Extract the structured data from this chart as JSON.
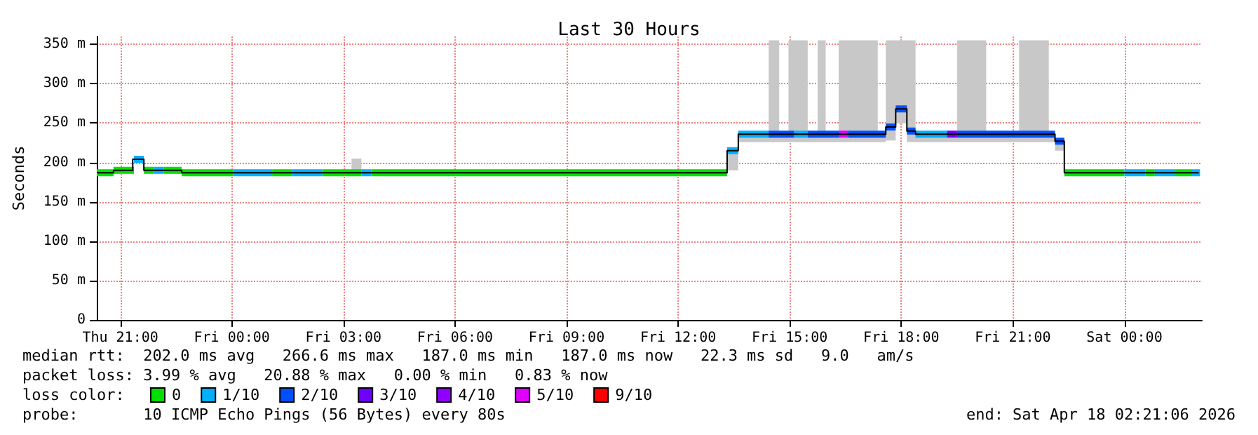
{
  "chart_data": {
    "type": "line",
    "title": "Last 30 Hours",
    "ylabel": "Seconds",
    "legend_title": "loss color:",
    "xlim": [
      "2026-04-16T20:22",
      "2026-04-18T02:05"
    ],
    "ylim": [
      0,
      360
    ],
    "xticks": [
      {
        "value": "2026-04-16T21:00",
        "label": "Thu 21:00"
      },
      {
        "value": "2026-04-17T00:00",
        "label": "Fri 00:00"
      },
      {
        "value": "2026-04-17T03:00",
        "label": "Fri 03:00"
      },
      {
        "value": "2026-04-17T06:00",
        "label": "Fri 06:00"
      },
      {
        "value": "2026-04-17T09:00",
        "label": "Fri 09:00"
      },
      {
        "value": "2026-04-17T12:00",
        "label": "Fri 12:00"
      },
      {
        "value": "2026-04-17T15:00",
        "label": "Fri 15:00"
      },
      {
        "value": "2026-04-17T18:00",
        "label": "Fri 18:00"
      },
      {
        "value": "2026-04-17T21:00",
        "label": "Fri 21:00"
      },
      {
        "value": "2026-04-18T00:00",
        "label": "Sat 00:00"
      }
    ],
    "yticks": [
      0,
      {
        "value": 50,
        "label": "50 m"
      },
      {
        "value": 100,
        "label": "100 m"
      },
      {
        "value": 150,
        "label": "150 m"
      },
      {
        "value": 200,
        "label": "200 m"
      },
      {
        "value": 250,
        "label": "250 m"
      },
      {
        "value": 300,
        "label": "300 m"
      },
      {
        "value": 350,
        "label": "350 m"
      }
    ],
    "grid": true,
    "legend": "bottom",
    "marker": "none",
    "series": [
      {
        "type": "step",
        "color": "#000000",
        "x": [
          "2026-04-16T20:22",
          "2026-04-16T20:49",
          "2026-04-16T21:20",
          "2026-04-16T21:38",
          "2026-04-16T22:39",
          "2026-04-17T03:13",
          "2026-04-17T03:29",
          "2026-04-17T13:19",
          "2026-04-17T13:37",
          "2026-04-17T14:26",
          "2026-04-17T14:43",
          "2026-04-17T14:58",
          "2026-04-17T15:29",
          "2026-04-17T15:45",
          "2026-04-17T15:58",
          "2026-04-17T16:19",
          "2026-04-17T17:22",
          "2026-04-17T17:35",
          "2026-04-17T17:51",
          "2026-04-17T18:09",
          "2026-04-17T18:23",
          "2026-04-17T19:30",
          "2026-04-17T20:17",
          "2026-04-17T21:10",
          "2026-04-17T21:58",
          "2026-04-17T22:08",
          "2026-04-17T22:23",
          "2026-04-18T02:00"
        ],
        "values": [
          187,
          190,
          204,
          190,
          187,
          187,
          187,
          215,
          236,
          236,
          236,
          236,
          236,
          236,
          236,
          236,
          236,
          245,
          268,
          240,
          236,
          236,
          236,
          236,
          236,
          227,
          187,
          187
        ],
        "lower": [
          187,
          190,
          204,
          190,
          187,
          187,
          187,
          190,
          226,
          226,
          226,
          226,
          226,
          226,
          226,
          226,
          226,
          228,
          250,
          226,
          226,
          226,
          226,
          226,
          226,
          215,
          187,
          187
        ],
        "upper": [
          187,
          190,
          204,
          190,
          187,
          205,
          187,
          215,
          240,
          355,
          240,
          355,
          240,
          355,
          240,
          355,
          240,
          355,
          355,
          355,
          240,
          355,
          240,
          355,
          240,
          230,
          187,
          187
        ]
      },
      {
        "name": "0",
        "color": "#00e000",
        "x": [
          "2026-04-16T20:22",
          "2026-04-16T20:49",
          "2026-04-16T20:49",
          "2026-04-16T21:22",
          "2026-04-16T21:38",
          "2026-04-16T21:54",
          "2026-04-16T22:10",
          "2026-04-16T22:39",
          "2026-04-16T22:39",
          "2026-04-17T00:02",
          "2026-04-17T01:05",
          "2026-04-17T01:37",
          "2026-04-17T02:26",
          "2026-04-17T03:29",
          "2026-04-17T03:45",
          "2026-04-17T13:19",
          "2026-04-17T22:23",
          "2026-04-18T00:00",
          "2026-04-18T00:34",
          "2026-04-18T00:49",
          "2026-04-18T01:21",
          "2026-04-18T01:48"
        ],
        "values": [
          187,
          187,
          190,
          190,
          190,
          190,
          190,
          190,
          187,
          187,
          187,
          187,
          187,
          187,
          187,
          187,
          187,
          187,
          187,
          187,
          187,
          187
        ]
      },
      {
        "name": "1/10",
        "color": "#00b0ff",
        "x": [
          "2026-04-16T21:22",
          "2026-04-16T21:38",
          "2026-04-16T21:54",
          "2026-04-16T22:10",
          "2026-04-17T00:02",
          "2026-04-17T01:05",
          "2026-04-17T01:37",
          "2026-04-17T02:26",
          "2026-04-17T03:29",
          "2026-04-17T03:45",
          "2026-04-17T13:19",
          "2026-04-17T13:37",
          "2026-04-17T13:37",
          "2026-04-17T14:26",
          "2026-04-17T15:07",
          "2026-04-17T15:29",
          "2026-04-17T18:23",
          "2026-04-17T19:14",
          "2026-04-18T00:00",
          "2026-04-18T00:34",
          "2026-04-18T00:49",
          "2026-04-18T01:21",
          "2026-04-18T01:48",
          "2026-04-18T02:02"
        ],
        "values": [
          204,
          204,
          190,
          190,
          187,
          187,
          187,
          187,
          187,
          187,
          215,
          215,
          236,
          236,
          236,
          236,
          236,
          236,
          187,
          187,
          187,
          187,
          187,
          187
        ]
      },
      {
        "name": "2/10",
        "color": "#0050ff",
        "x": [
          "2026-04-17T14:26",
          "2026-04-17T15:07",
          "2026-04-17T15:29",
          "2026-04-17T16:19",
          "2026-04-17T16:34",
          "2026-04-17T17:35",
          "2026-04-17T17:35",
          "2026-04-17T17:51",
          "2026-04-17T17:51",
          "2026-04-17T18:09",
          "2026-04-17T18:09",
          "2026-04-17T18:23",
          "2026-04-17T19:30",
          "2026-04-17T22:08",
          "2026-04-17T22:08",
          "2026-04-17T22:23"
        ],
        "values": [
          236,
          236,
          236,
          236,
          236,
          236,
          245,
          245,
          268,
          268,
          240,
          240,
          236,
          236,
          227,
          227
        ]
      },
      {
        "name": "3/10",
        "color": "#7000ff",
        "x": [
          "2026-04-17T19:14",
          "2026-04-17T19:30"
        ],
        "values": [
          236,
          236
        ]
      },
      {
        "name": "4/10",
        "color": "#9000ff"
      },
      {
        "name": "5/10",
        "color": "#e000ff",
        "x": [
          "2026-04-17T16:19",
          "2026-04-17T16:34"
        ],
        "values": [
          236,
          236
        ]
      },
      {
        "name": "9/10",
        "color": "#ff0000"
      }
    ],
    "annotations": [
      "median rtt:  202.0 ms avg   266.6 ms max   187.0 ms min   187.0 ms now   22.3 ms sd   9.0   am/s",
      "packet loss: 3.99 % avg   20.88 % max   0.00 % min   0.83 % now",
      "probe:       10 ICMP Echo Pings (56 Bytes) every 80s",
      "end: Sat Apr 18 02:21:06 2026"
    ]
  }
}
